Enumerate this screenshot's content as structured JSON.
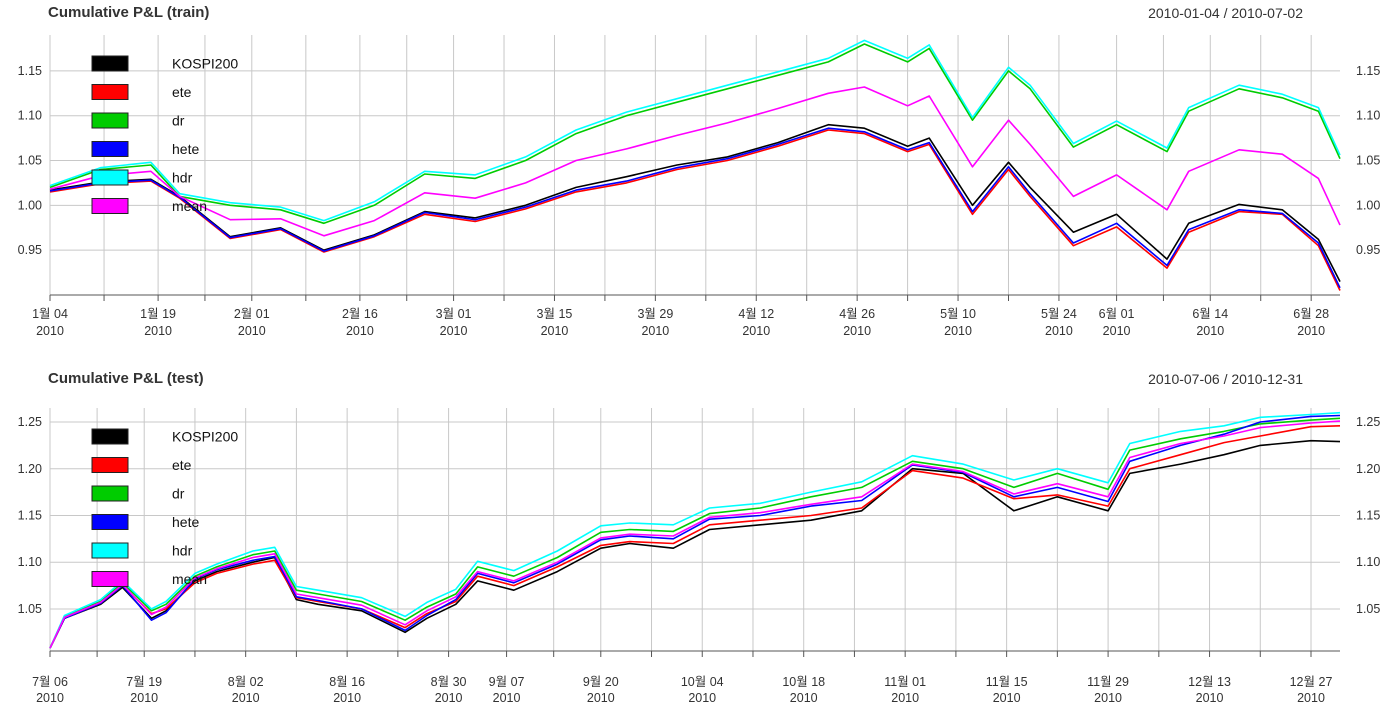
{
  "chart_data": [
    {
      "type": "line",
      "title": "Cumulative P&L (train)",
      "date_range": "2010-01-04 / 2010-07-02",
      "ylim": [
        0.9,
        1.19
      ],
      "yticks": [
        "0.95",
        "1.00",
        "1.05",
        "1.10",
        "1.15"
      ],
      "xticks": [
        {
          "label": "1월 04",
          "year": "2010"
        },
        {
          "label": "1월 19",
          "year": "2010"
        },
        {
          "label": "2월 01",
          "year": "2010"
        },
        {
          "label": "2월 16",
          "year": "2010"
        },
        {
          "label": "3월 01",
          "year": "2010"
        },
        {
          "label": "3월 15",
          "year": "2010"
        },
        {
          "label": "3월 29",
          "year": "2010"
        },
        {
          "label": "4월 12",
          "year": "2010"
        },
        {
          "label": "4월 26",
          "year": "2010"
        },
        {
          "label": "5월 10",
          "year": "2010"
        },
        {
          "label": "5월 24",
          "year": "2010"
        },
        {
          "label": "6월 01",
          "year": "2010"
        },
        {
          "label": "6월 14",
          "year": "2010"
        },
        {
          "label": "6월 28",
          "year": "2010"
        }
      ],
      "grid": true,
      "legend_position": "top-left",
      "x": [
        "2010-01-04",
        "2010-01-11",
        "2010-01-18",
        "2010-01-22",
        "2010-01-29",
        "2010-02-05",
        "2010-02-11",
        "2010-02-18",
        "2010-02-25",
        "2010-03-04",
        "2010-03-11",
        "2010-03-18",
        "2010-03-25",
        "2010-04-01",
        "2010-04-08",
        "2010-04-15",
        "2010-04-22",
        "2010-04-27",
        "2010-05-03",
        "2010-05-06",
        "2010-05-12",
        "2010-05-17",
        "2010-05-20",
        "2010-05-26",
        "2010-06-01",
        "2010-06-08",
        "2010-06-11",
        "2010-06-18",
        "2010-06-24",
        "2010-06-29",
        "2010-07-02"
      ],
      "series": [
        {
          "name": "KOSPI200",
          "color": "#000000",
          "values": [
            1.017,
            1.026,
            1.029,
            1.01,
            0.965,
            0.975,
            0.95,
            0.967,
            0.993,
            0.986,
            1.0,
            1.02,
            1.032,
            1.045,
            1.054,
            1.07,
            1.09,
            1.086,
            1.066,
            1.075,
            1.0,
            1.048,
            1.02,
            0.97,
            0.99,
            0.94,
            0.98,
            1.001,
            0.995,
            0.962,
            0.915
          ]
        },
        {
          "name": "ete",
          "color": "#ff0000",
          "values": [
            1.015,
            1.024,
            1.027,
            1.008,
            0.963,
            0.973,
            0.948,
            0.965,
            0.99,
            0.982,
            0.996,
            1.015,
            1.025,
            1.04,
            1.05,
            1.066,
            1.084,
            1.08,
            1.06,
            1.068,
            0.99,
            1.04,
            1.01,
            0.955,
            0.976,
            0.93,
            0.97,
            0.993,
            0.99,
            0.955,
            0.905
          ]
        },
        {
          "name": "dr",
          "color": "#00cc00",
          "values": [
            1.02,
            1.04,
            1.045,
            1.01,
            1.0,
            0.995,
            0.98,
            1.0,
            1.035,
            1.03,
            1.05,
            1.08,
            1.1,
            1.115,
            1.13,
            1.145,
            1.16,
            1.18,
            1.16,
            1.175,
            1.095,
            1.15,
            1.13,
            1.065,
            1.09,
            1.06,
            1.105,
            1.13,
            1.12,
            1.105,
            1.052
          ]
        },
        {
          "name": "hete",
          "color": "#0000ff",
          "values": [
            1.016,
            1.025,
            1.028,
            1.009,
            0.964,
            0.974,
            0.949,
            0.966,
            0.992,
            0.984,
            0.998,
            1.017,
            1.027,
            1.042,
            1.052,
            1.068,
            1.086,
            1.082,
            1.062,
            1.07,
            0.993,
            1.043,
            1.013,
            0.958,
            0.98,
            0.933,
            0.973,
            0.995,
            0.991,
            0.958,
            0.908
          ]
        },
        {
          "name": "hdr",
          "color": "#00ffff",
          "values": [
            1.022,
            1.042,
            1.048,
            1.013,
            1.003,
            0.998,
            0.983,
            1.004,
            1.038,
            1.034,
            1.054,
            1.084,
            1.104,
            1.119,
            1.134,
            1.149,
            1.164,
            1.184,
            1.164,
            1.179,
            1.098,
            1.154,
            1.134,
            1.069,
            1.094,
            1.064,
            1.109,
            1.134,
            1.124,
            1.109,
            1.056
          ]
        },
        {
          "name": "mean",
          "color": "#ff00ff",
          "values": [
            1.018,
            1.033,
            1.038,
            1.01,
            0.984,
            0.985,
            0.966,
            0.983,
            1.014,
            1.008,
            1.025,
            1.05,
            1.063,
            1.078,
            1.092,
            1.108,
            1.125,
            1.132,
            1.111,
            1.122,
            1.043,
            1.095,
            1.068,
            1.01,
            1.034,
            0.995,
            1.038,
            1.062,
            1.057,
            1.03,
            0.978
          ]
        }
      ]
    },
    {
      "type": "line",
      "title": "Cumulative P&L (test)",
      "date_range": "2010-07-06 / 2010-12-31",
      "ylim": [
        1.005,
        1.265
      ],
      "yticks": [
        "1.05",
        "1.10",
        "1.15",
        "1.20",
        "1.25"
      ],
      "xticks": [
        {
          "label": "7월 06",
          "year": "2010"
        },
        {
          "label": "7월 19",
          "year": "2010"
        },
        {
          "label": "8월 02",
          "year": "2010"
        },
        {
          "label": "8월 16",
          "year": "2010"
        },
        {
          "label": "8월 30",
          "year": "2010"
        },
        {
          "label": "9월 07",
          "year": "2010"
        },
        {
          "label": "9월 20",
          "year": "2010"
        },
        {
          "label": "10월 04",
          "year": "2010"
        },
        {
          "label": "10월 18",
          "year": "2010"
        },
        {
          "label": "11월 01",
          "year": "2010"
        },
        {
          "label": "11월 15",
          "year": "2010"
        },
        {
          "label": "11월 29",
          "year": "2010"
        },
        {
          "label": "12월 13",
          "year": "2010"
        },
        {
          "label": "12월 27",
          "year": "2010"
        }
      ],
      "grid": true,
      "legend_position": "top-left",
      "x": [
        "2010-07-06",
        "2010-07-08",
        "2010-07-13",
        "2010-07-16",
        "2010-07-20",
        "2010-07-22",
        "2010-07-26",
        "2010-07-29",
        "2010-08-03",
        "2010-08-06",
        "2010-08-09",
        "2010-08-12",
        "2010-08-18",
        "2010-08-24",
        "2010-08-27",
        "2010-08-31",
        "2010-09-03",
        "2010-09-08",
        "2010-09-14",
        "2010-09-20",
        "2010-09-24",
        "2010-09-30",
        "2010-10-05",
        "2010-10-12",
        "2010-10-19",
        "2010-10-26",
        "2010-11-02",
        "2010-11-09",
        "2010-11-16",
        "2010-11-22",
        "2010-11-29",
        "2010-12-02",
        "2010-12-09",
        "2010-12-15",
        "2010-12-20",
        "2010-12-27",
        "2010-12-31"
      ],
      "series": [
        {
          "name": "KOSPI200",
          "color": "#000000",
          "values": [
            1.008,
            1.04,
            1.055,
            1.073,
            1.04,
            1.048,
            1.08,
            1.09,
            1.1,
            1.105,
            1.06,
            1.055,
            1.048,
            1.025,
            1.04,
            1.055,
            1.08,
            1.07,
            1.09,
            1.115,
            1.12,
            1.115,
            1.135,
            1.14,
            1.145,
            1.155,
            1.2,
            1.195,
            1.155,
            1.17,
            1.155,
            1.195,
            1.205,
            1.215,
            1.225,
            1.23,
            1.229
          ]
        },
        {
          "name": "ete",
          "color": "#ff0000",
          "values": [
            1.008,
            1.04,
            1.056,
            1.075,
            1.045,
            1.05,
            1.078,
            1.088,
            1.098,
            1.102,
            1.062,
            1.058,
            1.05,
            1.03,
            1.045,
            1.058,
            1.085,
            1.075,
            1.095,
            1.118,
            1.122,
            1.12,
            1.14,
            1.145,
            1.15,
            1.158,
            1.198,
            1.19,
            1.168,
            1.172,
            1.16,
            1.2,
            1.215,
            1.228,
            1.235,
            1.245,
            1.246
          ]
        },
        {
          "name": "dr",
          "color": "#00cc00",
          "values": [
            1.008,
            1.042,
            1.058,
            1.078,
            1.048,
            1.055,
            1.085,
            1.095,
            1.108,
            1.112,
            1.07,
            1.066,
            1.058,
            1.038,
            1.052,
            1.066,
            1.095,
            1.085,
            1.105,
            1.132,
            1.135,
            1.133,
            1.152,
            1.158,
            1.17,
            1.18,
            1.208,
            1.2,
            1.18,
            1.195,
            1.178,
            1.22,
            1.232,
            1.24,
            1.248,
            1.252,
            1.254
          ]
        },
        {
          "name": "hete",
          "color": "#0000ff",
          "values": [
            1.008,
            1.04,
            1.056,
            1.075,
            1.038,
            1.046,
            1.082,
            1.092,
            1.102,
            1.106,
            1.063,
            1.059,
            1.05,
            1.027,
            1.043,
            1.06,
            1.088,
            1.078,
            1.098,
            1.124,
            1.128,
            1.125,
            1.146,
            1.15,
            1.16,
            1.166,
            1.204,
            1.196,
            1.17,
            1.18,
            1.165,
            1.208,
            1.225,
            1.237,
            1.25,
            1.256,
            1.257
          ]
        },
        {
          "name": "hdr",
          "color": "#00ffff",
          "values": [
            1.008,
            1.043,
            1.06,
            1.08,
            1.05,
            1.058,
            1.088,
            1.098,
            1.112,
            1.116,
            1.074,
            1.07,
            1.062,
            1.042,
            1.057,
            1.071,
            1.101,
            1.091,
            1.112,
            1.139,
            1.142,
            1.14,
            1.158,
            1.163,
            1.175,
            1.186,
            1.214,
            1.205,
            1.188,
            1.2,
            1.185,
            1.227,
            1.24,
            1.246,
            1.255,
            1.258,
            1.26
          ]
        },
        {
          "name": "mean",
          "color": "#ff00ff",
          "values": [
            1.008,
            1.041,
            1.057,
            1.076,
            1.044,
            1.052,
            1.083,
            1.093,
            1.105,
            1.109,
            1.066,
            1.062,
            1.054,
            1.033,
            1.048,
            1.063,
            1.09,
            1.08,
            1.1,
            1.126,
            1.13,
            1.128,
            1.148,
            1.153,
            1.162,
            1.17,
            1.205,
            1.197,
            1.173,
            1.184,
            1.17,
            1.212,
            1.227,
            1.235,
            1.244,
            1.249,
            1.251
          ]
        }
      ]
    }
  ]
}
